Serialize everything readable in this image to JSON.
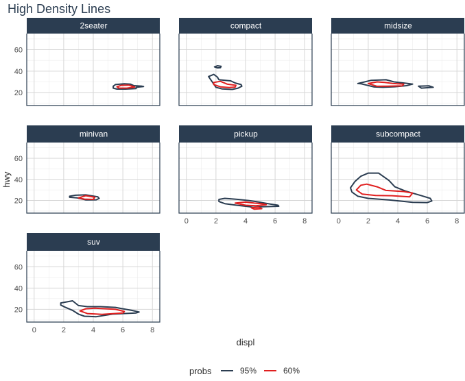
{
  "chart_data": {
    "type": "line",
    "subtype": "density-contour-facets",
    "title": "High Density Lines",
    "xlabel": "displ",
    "ylabel": "hwy",
    "xlim": [
      -0.5,
      8.5
    ],
    "ylim": [
      8,
      75
    ],
    "x_ticks": [
      0,
      2,
      4,
      6,
      8
    ],
    "y_ticks": [
      20,
      40,
      60
    ],
    "legend": {
      "title": "probs",
      "position": "bottom",
      "entries": [
        {
          "label": "95%",
          "color": "#2b3d51"
        },
        {
          "label": "60%",
          "color": "#e01f1f"
        }
      ]
    },
    "facets": [
      {
        "name": "2seater",
        "contours": [
          {
            "level": "95%",
            "polygons": [
              [
                [
                  5.35,
                  26
                ],
                [
                  5.5,
                  27.5
                ],
                [
                  6.1,
                  28.3
                ],
                [
                  6.5,
                  28
                ],
                [
                  6.75,
                  26.5
                ],
                [
                  7.3,
                  26
                ],
                [
                  7.4,
                  25.7
                ],
                [
                  6.9,
                  25
                ],
                [
                  6.9,
                  23.8
                ],
                [
                  6.2,
                  23.3
                ],
                [
                  5.6,
                  23.3
                ],
                [
                  5.35,
                  24.2
                ],
                [
                  5.35,
                  26
                ]
              ]
            ]
          },
          {
            "level": "60%",
            "polygons": [
              [
                [
                  5.6,
                  25.5
                ],
                [
                  5.9,
                  26.8
                ],
                [
                  6.4,
                  27
                ],
                [
                  6.8,
                  25.2
                ],
                [
                  6.3,
                  24.3
                ],
                [
                  5.75,
                  24.2
                ],
                [
                  5.6,
                  25.5
                ]
              ]
            ]
          }
        ]
      },
      {
        "name": "compact",
        "contours": [
          {
            "level": "95%",
            "polygons": [
              [
                [
                  1.5,
                  35
                ],
                [
                  1.85,
                  37
                ],
                [
                  2.1,
                  34.5
                ],
                [
                  2.2,
                  32
                ],
                [
                  3,
                  31
                ],
                [
                  3.3,
                  29
                ],
                [
                  3.7,
                  27.5
                ],
                [
                  3.75,
                  26
                ],
                [
                  3.5,
                  24.2
                ],
                [
                  3.1,
                  23
                ],
                [
                  2.4,
                  23.5
                ],
                [
                  2,
                  25
                ],
                [
                  1.85,
                  28
                ],
                [
                  1.7,
                  31
                ],
                [
                  1.5,
                  35
                ]
              ],
              [
                [
                  1.9,
                  44
                ],
                [
                  2.1,
                  45
                ],
                [
                  2.35,
                  44.5
                ],
                [
                  2.3,
                  43.2
                ],
                [
                  2.1,
                  43
                ],
                [
                  1.9,
                  44
                ]
              ]
            ]
          },
          {
            "level": "60%",
            "polygons": [
              [
                [
                  1.85,
                  29.5
                ],
                [
                  2.3,
                  30.5
                ],
                [
                  2.75,
                  28
                ],
                [
                  3.35,
                  26.8
                ],
                [
                  3.3,
                  25.2
                ],
                [
                  2.9,
                  24.7
                ],
                [
                  2.3,
                  25.4
                ],
                [
                  1.85,
                  27.5
                ],
                [
                  1.85,
                  29.5
                ]
              ]
            ]
          }
        ]
      },
      {
        "name": "midsize",
        "contours": [
          {
            "level": "95%",
            "polygons": [
              [
                [
                  1.3,
                  28.5
                ],
                [
                  2.2,
                  31.5
                ],
                [
                  3.2,
                  32
                ],
                [
                  3.75,
                  30
                ],
                [
                  4.7,
                  28.5
                ],
                [
                  5,
                  28
                ],
                [
                  4.6,
                  26.5
                ],
                [
                  3.8,
                  25.5
                ],
                [
                  3,
                  25
                ],
                [
                  2.4,
                  25.3
                ],
                [
                  1.5,
                  28.3
                ],
                [
                  1.3,
                  28.5
                ]
              ],
              [
                [
                  5.4,
                  26
                ],
                [
                  6.1,
                  26.4
                ],
                [
                  6.4,
                  25
                ],
                [
                  5.6,
                  24.2
                ],
                [
                  5.4,
                  26
                ]
              ]
            ]
          },
          {
            "level": "60%",
            "polygons": [
              [
                [
                  2,
                  28.5
                ],
                [
                  2.6,
                  30
                ],
                [
                  3.1,
                  29.5
                ],
                [
                  3.7,
                  28.5
                ],
                [
                  4.4,
                  28
                ],
                [
                  4.3,
                  26.3
                ],
                [
                  3.3,
                  26
                ],
                [
                  2.6,
                  25.9
                ],
                [
                  2,
                  28.5
                ]
              ]
            ]
          }
        ]
      },
      {
        "name": "minivan",
        "contours": [
          {
            "level": "95%",
            "polygons": [
              [
                [
                  2.4,
                  24
                ],
                [
                  2.8,
                  25
                ],
                [
                  3.5,
                  25.3
                ],
                [
                  4.3,
                  23.5
                ],
                [
                  4.4,
                  22
                ],
                [
                  4.2,
                  20.6
                ],
                [
                  3.5,
                  20.5
                ],
                [
                  2.9,
                  22.5
                ],
                [
                  2.4,
                  23
                ],
                [
                  2.4,
                  24
                ]
              ]
            ]
          },
          {
            "level": "60%",
            "polygons": [
              [
                [
                  3,
                  22.5
                ],
                [
                  3.5,
                  24.5
                ],
                [
                  4.1,
                  23
                ],
                [
                  4,
                  21
                ],
                [
                  3.4,
                  21.3
                ],
                [
                  3,
                  22.5
                ]
              ]
            ]
          }
        ]
      },
      {
        "name": "pickup",
        "contours": [
          {
            "level": "95%",
            "polygons": [
              [
                [
                  2.2,
                  21
                ],
                [
                  2.6,
                  22
                ],
                [
                  3.5,
                  21
                ],
                [
                  4.2,
                  20
                ],
                [
                  4.7,
                  19
                ],
                [
                  5.7,
                  16.5
                ],
                [
                  6.2,
                  15.5
                ],
                [
                  6.25,
                  14.5
                ],
                [
                  5.1,
                  14
                ],
                [
                  4.5,
                  13.5
                ],
                [
                  4.3,
                  14
                ],
                [
                  3.4,
                  15.5
                ],
                [
                  2.6,
                  17
                ],
                [
                  2.2,
                  19
                ],
                [
                  2.2,
                  21
                ]
              ]
            ]
          },
          {
            "level": "60%",
            "polygons": [
              [
                [
                  3.3,
                  17.5
                ],
                [
                  4,
                  18.5
                ],
                [
                  4.6,
                  17.5
                ],
                [
                  5.1,
                  17
                ],
                [
                  5.4,
                  16
                ],
                [
                  4.7,
                  15
                ],
                [
                  4,
                  15.5
                ],
                [
                  3.3,
                  17.5
                ]
              ],
              [
                [
                  4.4,
                  13
                ],
                [
                  4.9,
                  13.6
                ],
                [
                  5.1,
                  12.2
                ],
                [
                  4.6,
                  11.7
                ],
                [
                  4.4,
                  13
                ]
              ]
            ]
          }
        ]
      },
      {
        "name": "subcompact",
        "contours": [
          {
            "level": "95%",
            "polygons": [
              [
                [
                  0.8,
                  32
                ],
                [
                  1.1,
                  38
                ],
                [
                  1.5,
                  43
                ],
                [
                  2,
                  46
                ],
                [
                  2.7,
                  46
                ],
                [
                  3.4,
                  39
                ],
                [
                  3.8,
                  33
                ],
                [
                  4.5,
                  29
                ],
                [
                  5.6,
                  24.5
                ],
                [
                  6.2,
                  22
                ],
                [
                  6.3,
                  19.5
                ],
                [
                  6,
                  18
                ],
                [
                  5,
                  18.2
                ],
                [
                  3.4,
                  20.5
                ],
                [
                  2,
                  22
                ],
                [
                  1.3,
                  24
                ],
                [
                  0.9,
                  28
                ],
                [
                  0.8,
                  32
                ]
              ]
            ]
          },
          {
            "level": "60%",
            "polygons": [
              [
                [
                  1.2,
                  30
                ],
                [
                  1.5,
                  34.5
                ],
                [
                  1.9,
                  35.5
                ],
                [
                  2.6,
                  33
                ],
                [
                  3.2,
                  29.5
                ],
                [
                  4.4,
                  28.5
                ],
                [
                  5,
                  27
                ],
                [
                  4.8,
                  23.5
                ],
                [
                  3.6,
                  24.5
                ],
                [
                  2.5,
                  24.8
                ],
                [
                  1.6,
                  26
                ],
                [
                  1.2,
                  30
                ]
              ]
            ]
          }
        ]
      },
      {
        "name": "suv",
        "contours": [
          {
            "level": "95%",
            "polygons": [
              [
                [
                  1.8,
                  26
                ],
                [
                  2.6,
                  28
                ],
                [
                  3,
                  23.5
                ],
                [
                  3.6,
                  22.5
                ],
                [
                  4.5,
                  22.5
                ],
                [
                  5.5,
                  21.8
                ],
                [
                  6,
                  20.5
                ],
                [
                  6.6,
                  19
                ],
                [
                  7.1,
                  17.5
                ],
                [
                  6.9,
                  16.6
                ],
                [
                  5.3,
                  15.5
                ],
                [
                  4.2,
                  13
                ],
                [
                  3.4,
                  13.5
                ],
                [
                  3,
                  15.5
                ],
                [
                  2.6,
                  19
                ],
                [
                  2.1,
                  22
                ],
                [
                  1.8,
                  24
                ],
                [
                  1.8,
                  26
                ]
              ]
            ]
          },
          {
            "level": "60%",
            "polygons": [
              [
                [
                  3.1,
                  18.5
                ],
                [
                  3.5,
                  20.5
                ],
                [
                  4.1,
                  21
                ],
                [
                  5.5,
                  20
                ],
                [
                  6.1,
                  18
                ],
                [
                  6,
                  16.5
                ],
                [
                  5.4,
                  16
                ],
                [
                  4.6,
                  15.2
                ],
                [
                  3.6,
                  16
                ],
                [
                  3.1,
                  18.5
                ]
              ]
            ]
          }
        ]
      }
    ]
  }
}
